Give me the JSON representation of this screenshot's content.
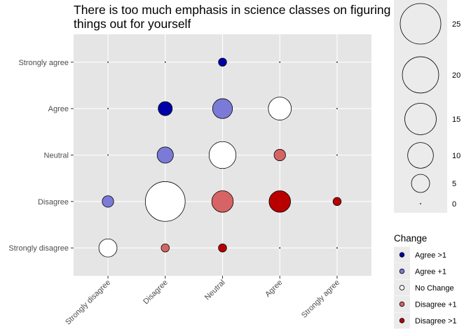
{
  "chart_data": {
    "type": "scatter",
    "title_lines": [
      "There is too much emphasis in science classes on figuring",
      "things out for yourself"
    ],
    "x_categories": [
      "Strongly disagree",
      "Disagree",
      "Neutral",
      "Agree",
      "Strongly agree"
    ],
    "y_categories": [
      "Strongly disagree",
      "Disagree",
      "Neutral",
      "Agree",
      "Strongly agree"
    ],
    "points": [
      {
        "x": "Strongly disagree",
        "y": "Strongly disagree",
        "count": 5,
        "change": "No Change"
      },
      {
        "x": "Strongly disagree",
        "y": "Disagree",
        "count": 2,
        "change": "Agree +1"
      },
      {
        "x": "Strongly disagree",
        "y": "Neutral",
        "count": 0,
        "change": "Agree +1"
      },
      {
        "x": "Strongly disagree",
        "y": "Agree",
        "count": 0,
        "change": "Agree >1"
      },
      {
        "x": "Strongly disagree",
        "y": "Strongly agree",
        "count": 0,
        "change": "Agree >1"
      },
      {
        "x": "Disagree",
        "y": "Strongly disagree",
        "count": 1,
        "change": "Disagree +1"
      },
      {
        "x": "Disagree",
        "y": "Disagree",
        "count": 24,
        "change": "No Change"
      },
      {
        "x": "Disagree",
        "y": "Neutral",
        "count": 4,
        "change": "Agree +1"
      },
      {
        "x": "Disagree",
        "y": "Agree",
        "count": 3,
        "change": "Agree >1"
      },
      {
        "x": "Disagree",
        "y": "Strongly agree",
        "count": 0,
        "change": "Agree >1"
      },
      {
        "x": "Neutral",
        "y": "Strongly disagree",
        "count": 1,
        "change": "Disagree >1"
      },
      {
        "x": "Neutral",
        "y": "Disagree",
        "count": 7,
        "change": "Disagree +1"
      },
      {
        "x": "Neutral",
        "y": "Neutral",
        "count": 11,
        "change": "No Change"
      },
      {
        "x": "Neutral",
        "y": "Agree",
        "count": 6,
        "change": "Agree +1"
      },
      {
        "x": "Neutral",
        "y": "Strongly agree",
        "count": 1,
        "change": "Agree >1"
      },
      {
        "x": "Agree",
        "y": "Strongly disagree",
        "count": 0,
        "change": "Disagree >1"
      },
      {
        "x": "Agree",
        "y": "Disagree",
        "count": 7,
        "change": "Disagree >1"
      },
      {
        "x": "Agree",
        "y": "Neutral",
        "count": 2,
        "change": "Disagree +1"
      },
      {
        "x": "Agree",
        "y": "Agree",
        "count": 8,
        "change": "No Change"
      },
      {
        "x": "Agree",
        "y": "Strongly agree",
        "count": 0,
        "change": "Agree +1"
      },
      {
        "x": "Strongly agree",
        "y": "Strongly disagree",
        "count": 0,
        "change": "Disagree >1"
      },
      {
        "x": "Strongly agree",
        "y": "Disagree",
        "count": 1,
        "change": "Disagree >1"
      },
      {
        "x": "Strongly agree",
        "y": "Neutral",
        "count": 0,
        "change": "Disagree >1"
      },
      {
        "x": "Strongly agree",
        "y": "Agree",
        "count": 0,
        "change": "Disagree +1"
      },
      {
        "x": "Strongly agree",
        "y": "Strongly agree",
        "count": 0,
        "change": "No Change"
      }
    ],
    "size_legend": {
      "values": [
        25,
        20,
        15,
        10,
        5,
        0
      ]
    },
    "color_legend": {
      "title": "Change",
      "items": [
        {
          "label": "Agree >1",
          "color": "#0000a8"
        },
        {
          "label": "Agree +1",
          "color": "#7b7bd7"
        },
        {
          "label": "No Change",
          "color": "#ffffff"
        },
        {
          "label": "Disagree +1",
          "color": "#d76464"
        },
        {
          "label": "Disagree >1",
          "color": "#b80000"
        }
      ]
    },
    "colors": {
      "panel": "#e5e5e5",
      "grid": "#ffffff",
      "legend_key": "#ebebeb",
      "outline": "#000000"
    }
  }
}
